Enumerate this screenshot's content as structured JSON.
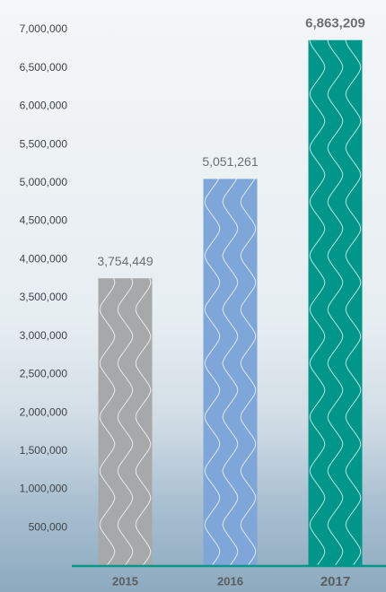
{
  "chart_data": {
    "type": "bar",
    "categories": [
      "2015",
      "2016",
      "2017"
    ],
    "values": [
      3754449,
      5051261,
      6863209
    ],
    "value_labels": [
      "3,754,449",
      "5,051,261",
      "6,863,209"
    ],
    "colors": [
      "#a7a8aa",
      "#7fa6d9",
      "#00968a"
    ],
    "ylim": [
      0,
      7000000
    ],
    "yticks": [
      {
        "value": 500000,
        "label": "500,000"
      },
      {
        "value": 1000000,
        "label": "1,000,000"
      },
      {
        "value": 1500000,
        "label": "1,500,000"
      },
      {
        "value": 2000000,
        "label": "2,000,000"
      },
      {
        "value": 2500000,
        "label": "2,500,000"
      },
      {
        "value": 3000000,
        "label": "3,000,000"
      },
      {
        "value": 3500000,
        "label": "3,500,000"
      },
      {
        "value": 4000000,
        "label": "4,000,000"
      },
      {
        "value": 4500000,
        "label": "4,500,000"
      },
      {
        "value": 5000000,
        "label": "5,000,000"
      },
      {
        "value": 5500000,
        "label": "5,500,000"
      },
      {
        "value": 6000000,
        "label": "6,000,000"
      },
      {
        "value": 6500000,
        "label": "6,500,000"
      },
      {
        "value": 7000000,
        "label": "7,000,000"
      }
    ],
    "grid": false
  }
}
